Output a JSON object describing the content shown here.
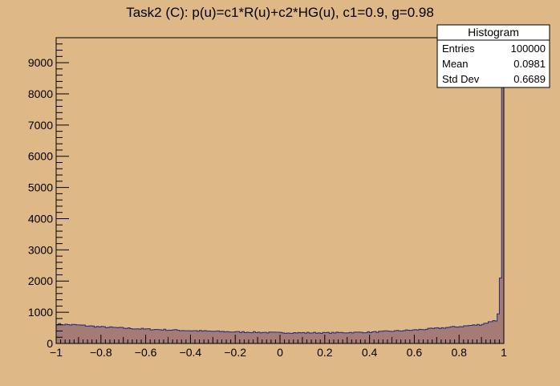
{
  "chart_data": {
    "type": "bar",
    "title": "Task2 (C): p(u)=c1*R(u)+c2*HG(u), c1=0.9, g=0.98",
    "xlabel": "",
    "ylabel": "",
    "xlim": [
      -1,
      1
    ],
    "ylim": [
      0,
      9800
    ],
    "grid": false,
    "x_ticks": [
      -1,
      -0.8,
      -0.6,
      -0.4,
      -0.2,
      0,
      0.2,
      0.4,
      0.6,
      0.8,
      1
    ],
    "x_tick_labels": [
      "−1",
      "−0.8",
      "−0.6",
      "−0.4",
      "−0.2",
      "0",
      "0.2",
      "0.4",
      "0.6",
      "0.8",
      "1"
    ],
    "y_ticks": [
      0,
      1000,
      2000,
      3000,
      4000,
      5000,
      6000,
      7000,
      8000,
      9000
    ],
    "y_tick_labels": [
      "0",
      "1000",
      "2000",
      "3000",
      "4000",
      "5000",
      "6000",
      "7000",
      "8000",
      "9000"
    ],
    "fill_color": "#a57b76",
    "line_color": "#1f2a8a",
    "background_color": "#deb887",
    "bins": {
      "n": 200,
      "min": -1,
      "max": 1,
      "profile_u": [
        -1.0,
        -0.9,
        -0.8,
        -0.6,
        -0.4,
        -0.2,
        0.0,
        0.2,
        0.4,
        0.6,
        0.8,
        0.9,
        0.95,
        0.975,
        0.985,
        0.99,
        1.0
      ],
      "profile_counts": [
        620,
        590,
        530,
        460,
        410,
        370,
        345,
        340,
        360,
        430,
        540,
        610,
        720,
        850,
        1000,
        2000,
        9700
      ],
      "last_bins": [
        720,
        950,
        2100,
        9700
      ]
    },
    "stats_box": {
      "title": "Histogram",
      "rows": [
        {
          "label": "Entries",
          "value": "100000"
        },
        {
          "label": "Mean",
          "value": "0.0981"
        },
        {
          "label": "Std Dev",
          "value": "0.6689"
        }
      ],
      "placement": "top-right"
    }
  }
}
